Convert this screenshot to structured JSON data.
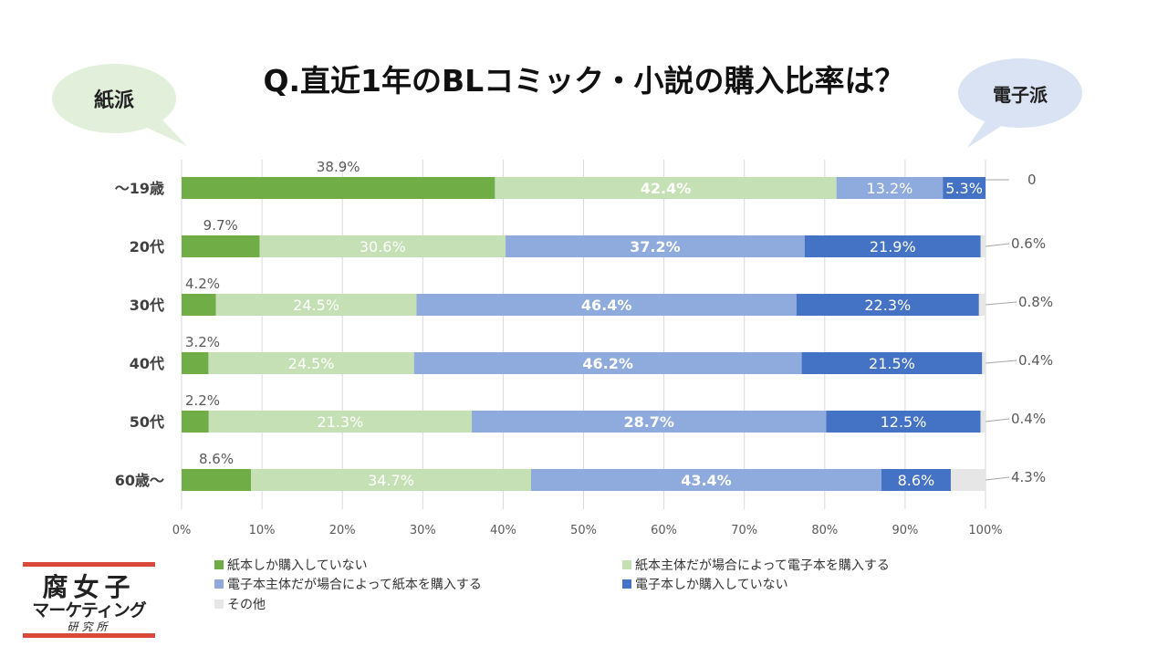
{
  "title": "Q.直近1年のBLコミック・小説の購入比率は？",
  "bubbles": {
    "left": "紙派",
    "right": "電子派"
  },
  "colors": {
    "s1": "#70ad47",
    "s2": "#c5e0b4",
    "s3": "#8faadc",
    "s4": "#4472c4",
    "s5": "#e7e6e6",
    "bubble_left": "#e2efda",
    "bubble_right": "#dae3f3"
  },
  "logo": {
    "line1": "腐女子",
    "line2": "マーケティング",
    "line3": "研究所"
  },
  "chart_data": {
    "type": "bar",
    "orientation": "horizontal",
    "stacked": "100%",
    "categories": [
      "～19歳",
      "20代",
      "30代",
      "40代",
      "50代",
      "60歳～"
    ],
    "series": [
      {
        "name": "紙本しか購入していない",
        "values": [
          38.9,
          9.7,
          4.2,
          3.2,
          2.2,
          8.6
        ]
      },
      {
        "name": "紙本主体だが場合によって電子本を購入する",
        "values": [
          42.4,
          30.6,
          24.5,
          24.5,
          21.3,
          34.7
        ]
      },
      {
        "name": "電子本主体だが場合によって紙本を購入する",
        "values": [
          13.2,
          37.2,
          46.4,
          46.2,
          28.7,
          43.4
        ]
      },
      {
        "name": "電子本しか購入していない",
        "values": [
          5.3,
          21.9,
          22.3,
          21.5,
          12.5,
          8.6
        ]
      },
      {
        "name": "その他",
        "values": [
          0,
          0.6,
          0.8,
          0.4,
          0.4,
          4.3
        ]
      }
    ],
    "data_labels": [
      [
        "38.9%",
        "42.4%",
        "13.2%",
        "5.3%",
        "0"
      ],
      [
        "9.7%",
        "30.6%",
        "37.2%",
        "21.9%",
        "0.6%"
      ],
      [
        "4.2%",
        "24.5%",
        "46.4%",
        "22.3%",
        "0.8%"
      ],
      [
        "3.2%",
        "24.5%",
        "46.2%",
        "21.5%",
        "0.4%"
      ],
      [
        "2.2%",
        "21.3%",
        "28.7%",
        "12.5%",
        "0.4%"
      ],
      [
        "8.6%",
        "34.7%",
        "43.4%",
        "8.6%",
        "4.3%"
      ]
    ],
    "xticks": [
      "0%",
      "10%",
      "20%",
      "30%",
      "40%",
      "50%",
      "60%",
      "70%",
      "80%",
      "90%",
      "100%"
    ],
    "xlim": [
      0,
      100
    ],
    "grid": true,
    "legend_position": "bottom"
  }
}
